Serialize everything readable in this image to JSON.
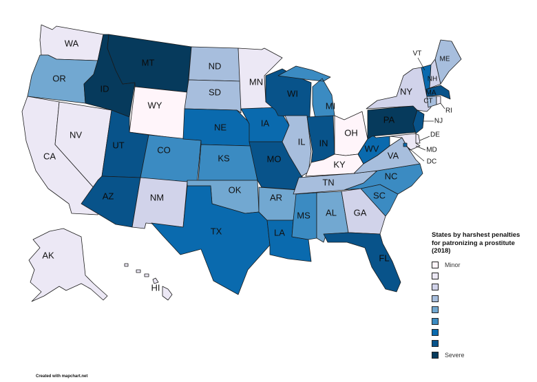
{
  "legend": {
    "title_line1": "States by harshest penalties",
    "title_line2": "for patronizing a prostitute",
    "title_line3": "(2018)",
    "levels": [
      {
        "label": "Minor",
        "color": "#fff5fa"
      },
      {
        "label": "",
        "color": "#ece8f5"
      },
      {
        "label": "",
        "color": "#d1d3ea"
      },
      {
        "label": "",
        "color": "#a7bedd"
      },
      {
        "label": "",
        "color": "#72a8d1"
      },
      {
        "label": "",
        "color": "#3b8bc2"
      },
      {
        "label": "",
        "color": "#0a6aae"
      },
      {
        "label": "",
        "color": "#08538a"
      },
      {
        "label": "Severe",
        "color": "#063a5c"
      }
    ]
  },
  "credit": "Created with mapchart.net",
  "states": {
    "WA": {
      "label": "WA",
      "level": 1
    },
    "OR": {
      "label": "OR",
      "level": 4
    },
    "CA": {
      "label": "CA",
      "level": 1
    },
    "NV": {
      "label": "NV",
      "level": 1
    },
    "ID": {
      "label": "ID",
      "level": 8
    },
    "MT": {
      "label": "MT",
      "level": 8
    },
    "WY": {
      "label": "WY",
      "level": 0
    },
    "UT": {
      "label": "UT",
      "level": 7
    },
    "AZ": {
      "label": "AZ",
      "level": 7
    },
    "CO": {
      "label": "CO",
      "level": 5
    },
    "NM": {
      "label": "NM",
      "level": 2
    },
    "ND": {
      "label": "ND",
      "level": 3
    },
    "SD": {
      "label": "SD",
      "level": 3
    },
    "NE": {
      "label": "NE",
      "level": 6
    },
    "KS": {
      "label": "KS",
      "level": 5
    },
    "OK": {
      "label": "OK",
      "level": 4
    },
    "TX": {
      "label": "TX",
      "level": 6
    },
    "MN": {
      "label": "MN",
      "level": 1
    },
    "IA": {
      "label": "IA",
      "level": 6
    },
    "MO": {
      "label": "MO",
      "level": 7
    },
    "AR": {
      "label": "AR",
      "level": 4
    },
    "LA": {
      "label": "LA",
      "level": 6
    },
    "WI": {
      "label": "WI",
      "level": 7
    },
    "IL": {
      "label": "IL",
      "level": 3
    },
    "MI": {
      "label": "MI",
      "level": 5
    },
    "IN": {
      "label": "IN",
      "level": 7
    },
    "OH": {
      "label": "OH",
      "level": 0
    },
    "KY": {
      "label": "KY",
      "level": 0
    },
    "TN": {
      "label": "TN",
      "level": 3
    },
    "MS": {
      "label": "MS",
      "level": 5
    },
    "AL": {
      "label": "AL",
      "level": 4
    },
    "GA": {
      "label": "GA",
      "level": 2
    },
    "FL": {
      "label": "FL",
      "level": 7
    },
    "SC": {
      "label": "SC",
      "level": 5
    },
    "NC": {
      "label": "NC",
      "level": 5
    },
    "VA": {
      "label": "VA",
      "level": 3
    },
    "WV": {
      "label": "WV",
      "level": 6
    },
    "PA": {
      "label": "PA",
      "level": 8
    },
    "NY": {
      "label": "NY",
      "level": 2
    },
    "VT": {
      "label": "VT",
      "level": 6
    },
    "NH": {
      "label": "NH",
      "level": 2
    },
    "ME": {
      "label": "ME",
      "level": 3
    },
    "MA": {
      "label": "MA",
      "level": 7
    },
    "RI": {
      "label": "RI",
      "level": 1
    },
    "CT": {
      "label": "CT",
      "level": 3
    },
    "NJ": {
      "label": "NJ",
      "level": 7
    },
    "DE": {
      "label": "DE",
      "level": 1
    },
    "MD": {
      "label": "MD",
      "level": 1
    },
    "DC": {
      "label": "DC",
      "level": 6
    },
    "AK": {
      "label": "AK",
      "level": 1
    },
    "HI": {
      "label": "HI",
      "level": 1
    }
  }
}
